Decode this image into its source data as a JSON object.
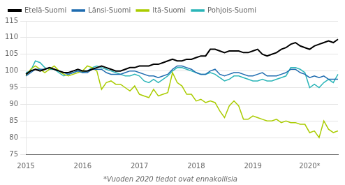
{
  "chart_data": {
    "type": "line",
    "annotations": [
      "*Vuoden 2020 tiedot ovat ennakollisia"
    ],
    "categories": [
      "2015",
      null,
      null,
      null,
      null,
      null,
      null,
      null,
      null,
      null,
      null,
      null,
      "2016",
      null,
      null,
      null,
      null,
      null,
      null,
      null,
      null,
      null,
      null,
      null,
      "2017",
      null,
      null,
      null,
      null,
      null,
      null,
      null,
      null,
      null,
      null,
      null,
      "2018",
      null,
      null,
      null,
      null,
      null,
      null,
      null,
      null,
      null,
      null,
      null,
      "2019",
      null,
      null,
      null,
      null,
      null,
      null,
      null,
      null,
      null,
      null,
      null,
      "2020*",
      null,
      null,
      null,
      null,
      null,
      null
    ],
    "series": [
      {
        "name": "Etelä-Suomi",
        "color": "#000000",
        "values": [
          99.0,
          100.0,
          100.5,
          100.0,
          100.5,
          101.0,
          100.5,
          100.0,
          99.5,
          99.5,
          100.0,
          100.5,
          100.0,
          100.0,
          100.5,
          101.0,
          101.5,
          101.0,
          100.5,
          100.0,
          100.0,
          100.5,
          101.0,
          101.0,
          101.5,
          101.5,
          101.5,
          102.0,
          102.0,
          102.5,
          103.0,
          103.5,
          103.0,
          103.0,
          103.5,
          103.5,
          104.0,
          104.5,
          104.5,
          106.5,
          106.5,
          106.0,
          105.5,
          106.0,
          106.0,
          106.0,
          105.5,
          105.5,
          106.0,
          106.5,
          105.0,
          104.5,
          105.0,
          105.5,
          106.5,
          107.0,
          108.0,
          108.5,
          107.5,
          107.0,
          106.5,
          107.5,
          108.0,
          108.5,
          109.0,
          108.5,
          109.5
        ]
      },
      {
        "name": "Länsi-Suomi",
        "color": "#1f6cb0",
        "values": [
          98.5,
          99.5,
          100.5,
          100.5,
          100.5,
          101.0,
          100.5,
          100.0,
          99.5,
          99.0,
          99.5,
          100.0,
          99.5,
          99.5,
          100.5,
          100.5,
          100.5,
          99.5,
          99.0,
          99.0,
          99.0,
          99.5,
          100.0,
          100.0,
          99.5,
          99.0,
          98.5,
          98.5,
          98.0,
          98.5,
          99.0,
          100.5,
          101.5,
          101.5,
          101.0,
          100.5,
          99.5,
          99.0,
          99.0,
          100.0,
          100.5,
          99.0,
          98.5,
          99.0,
          99.5,
          99.5,
          99.0,
          98.5,
          98.5,
          99.0,
          99.5,
          98.5,
          98.5,
          98.5,
          99.0,
          99.5,
          100.5,
          100.5,
          99.5,
          99.0,
          98.0,
          98.5,
          98.0,
          98.5,
          97.5,
          97.5,
          97.5
        ]
      },
      {
        "name": "Itä-Suomi",
        "color": "#aacc00",
        "values": [
          98.5,
          100.5,
          101.5,
          100.5,
          99.5,
          100.5,
          101.5,
          100.0,
          99.0,
          98.5,
          99.0,
          99.5,
          100.0,
          101.5,
          101.0,
          100.0,
          94.5,
          96.5,
          97.0,
          96.0,
          96.0,
          95.0,
          94.0,
          95.5,
          93.0,
          92.5,
          92.0,
          94.5,
          92.5,
          93.0,
          93.5,
          99.5,
          96.5,
          95.5,
          93.0,
          93.0,
          91.0,
          91.5,
          90.5,
          91.0,
          90.5,
          88.0,
          86.0,
          89.5,
          91.0,
          89.5,
          85.5,
          85.5,
          86.5,
          86.0,
          85.5,
          85.0,
          85.0,
          85.5,
          84.5,
          85.0,
          84.5,
          84.5,
          84.0,
          84.0,
          81.5,
          82.0,
          80.0,
          85.0,
          82.5,
          81.5,
          82.0
        ]
      },
      {
        "name": "Pohjois-Suomi",
        "color": "#2bb5b8",
        "values": [
          99.5,
          100.0,
          103.0,
          102.5,
          101.0,
          100.5,
          100.5,
          99.5,
          98.5,
          99.0,
          99.5,
          100.0,
          99.5,
          100.0,
          101.0,
          101.5,
          101.0,
          100.5,
          100.0,
          99.5,
          99.0,
          98.5,
          98.5,
          99.0,
          98.5,
          97.0,
          96.5,
          97.5,
          96.5,
          97.5,
          98.5,
          100.0,
          101.0,
          101.0,
          100.5,
          100.0,
          99.5,
          99.0,
          99.0,
          99.5,
          99.0,
          98.0,
          97.0,
          97.5,
          98.5,
          98.5,
          98.0,
          97.5,
          97.0,
          97.0,
          97.5,
          97.0,
          97.0,
          97.5,
          98.0,
          98.5,
          101.0,
          101.0,
          100.5,
          99.5,
          95.0,
          96.0,
          95.0,
          96.5,
          97.5,
          96.5,
          99.0
        ]
      }
    ],
    "ylim": [
      75,
      115
    ],
    "yticks": [
      75,
      80,
      85,
      90,
      95,
      100,
      105,
      110,
      115
    ],
    "grid": "y",
    "legend": "upper left"
  }
}
